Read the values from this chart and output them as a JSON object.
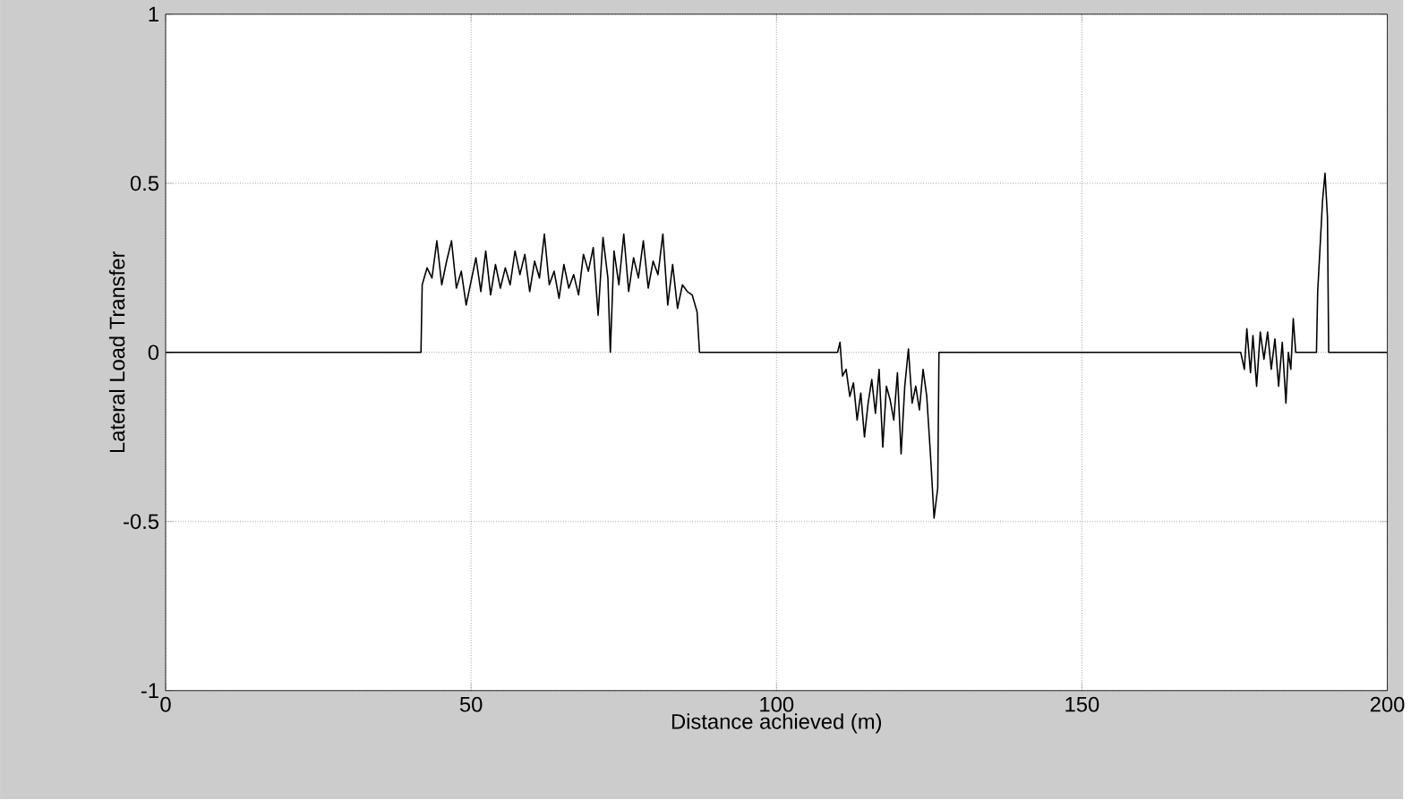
{
  "chart_data": {
    "type": "line",
    "xlabel": "Distance achieved (m)",
    "ylabel": "Lateral Load Transfer",
    "xlim": [
      0,
      200
    ],
    "ylim": [
      -1,
      1
    ],
    "xticks": [
      0,
      50,
      100,
      150,
      200
    ],
    "yticks": [
      -1,
      -0.5,
      0,
      0.5,
      1
    ],
    "grid": true,
    "marker": "none",
    "line_style": "solid",
    "series": [
      {
        "color": "#000000",
        "x": [
          0,
          41.8,
          42.0,
          42.8,
          43.6,
          44.4,
          45.2,
          46.0,
          46.8,
          47.6,
          48.4,
          49.2,
          50.0,
          50.8,
          51.6,
          52.4,
          53.2,
          54.0,
          54.8,
          55.6,
          56.4,
          57.2,
          58.0,
          58.8,
          59.6,
          60.4,
          61.2,
          62.0,
          62.8,
          63.6,
          64.4,
          65.2,
          66.0,
          66.8,
          67.6,
          68.4,
          69.2,
          70.0,
          70.8,
          71.6,
          72.4,
          72.8,
          73.4,
          74.2,
          75.0,
          75.8,
          76.6,
          77.4,
          78.2,
          79.0,
          79.8,
          80.6,
          81.4,
          82.2,
          83.0,
          83.8,
          84.6,
          85.4,
          86.2,
          87.0,
          87.4,
          110,
          110.4,
          110.8,
          111.4,
          112.0,
          112.6,
          113.2,
          113.8,
          114.4,
          115.0,
          115.6,
          116.2,
          116.8,
          117.4,
          118.0,
          118.6,
          119.2,
          119.8,
          120.4,
          121.0,
          121.6,
          122.2,
          122.8,
          123.4,
          124.0,
          124.6,
          125.2,
          125.8,
          126.4,
          126.6,
          176,
          176.6,
          177.0,
          177.6,
          178.0,
          178.6,
          179.2,
          179.8,
          180.4,
          181.0,
          181.6,
          182.2,
          182.8,
          183.4,
          183.8,
          184.2,
          184.6,
          185.0,
          188.4,
          188.6,
          189.4,
          189.8,
          190.2,
          190.4,
          200
        ],
        "values": [
          0,
          0,
          0.2,
          0.25,
          0.22,
          0.33,
          0.2,
          0.27,
          0.33,
          0.19,
          0.24,
          0.14,
          0.21,
          0.28,
          0.18,
          0.3,
          0.17,
          0.26,
          0.19,
          0.25,
          0.2,
          0.3,
          0.23,
          0.29,
          0.18,
          0.27,
          0.22,
          0.35,
          0.2,
          0.24,
          0.16,
          0.26,
          0.19,
          0.23,
          0.17,
          0.29,
          0.24,
          0.31,
          0.11,
          0.34,
          0.22,
          0,
          0.3,
          0.2,
          0.35,
          0.18,
          0.28,
          0.22,
          0.33,
          0.19,
          0.27,
          0.23,
          0.35,
          0.14,
          0.26,
          0.13,
          0.2,
          0.18,
          0.17,
          0.12,
          0,
          0,
          0.03,
          -0.07,
          -0.05,
          -0.13,
          -0.09,
          -0.2,
          -0.12,
          -0.25,
          -0.15,
          -0.08,
          -0.18,
          -0.05,
          -0.28,
          -0.1,
          -0.14,
          -0.2,
          -0.06,
          -0.3,
          -0.1,
          0.01,
          -0.15,
          -0.1,
          -0.17,
          -0.05,
          -0.13,
          -0.3,
          -0.49,
          -0.4,
          0,
          0,
          -0.05,
          0.07,
          -0.06,
          0.05,
          -0.1,
          0.06,
          -0.02,
          0.06,
          -0.05,
          0.04,
          -0.1,
          0.03,
          -0.15,
          0,
          -0.05,
          0.1,
          0,
          0,
          0.18,
          0.45,
          0.53,
          0.4,
          0,
          0
        ]
      }
    ]
  }
}
